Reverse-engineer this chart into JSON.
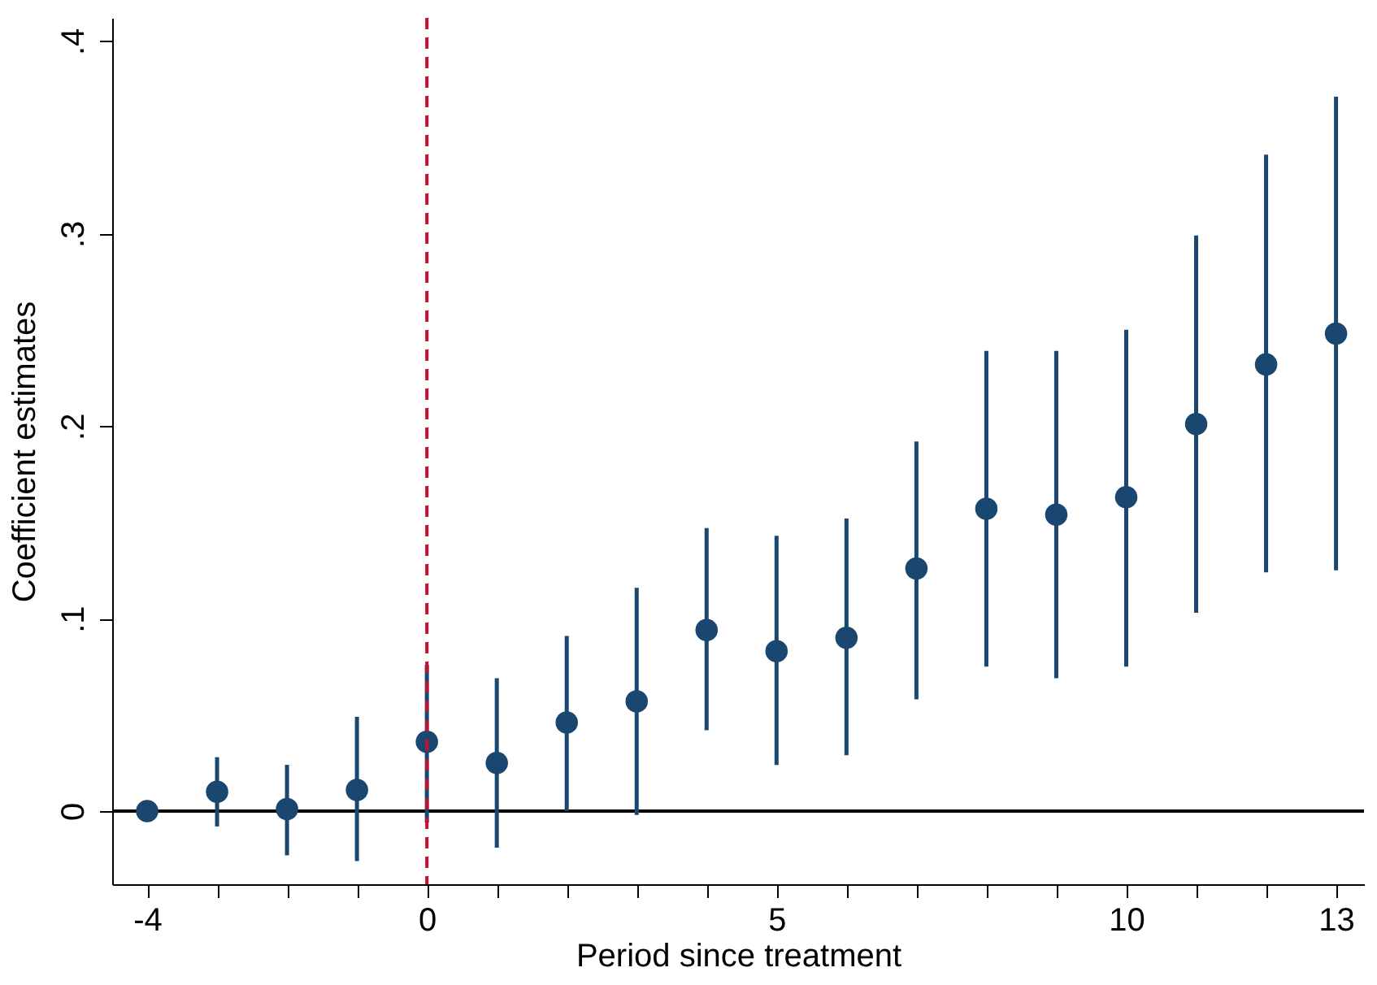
{
  "chart_data": {
    "type": "scatter",
    "xlabel": "Period since treatment",
    "ylabel": "Coefficient estimates",
    "x": [
      -4,
      -3,
      -2,
      -1,
      0,
      1,
      2,
      3,
      4,
      5,
      6,
      7,
      8,
      9,
      10,
      11,
      12,
      13
    ],
    "series": [
      {
        "color": "#1a476f",
        "values": [
          0,
          0.01,
          0.001,
          0.011,
          0.036,
          0.025,
          0.046,
          0.057,
          0.094,
          0.083,
          0.09,
          0.126,
          0.157,
          0.154,
          0.163,
          0.201,
          0.232,
          0.248
        ],
        "errors": [
          null,
          [
            -0.008,
            0.028
          ],
          [
            -0.023,
            0.024
          ],
          [
            -0.026,
            0.049
          ],
          [
            -0.006,
            0.076
          ],
          [
            -0.019,
            0.069
          ],
          [
            0.0,
            0.091
          ],
          [
            -0.002,
            0.116
          ],
          [
            0.042,
            0.147
          ],
          [
            0.024,
            0.143
          ],
          [
            0.029,
            0.152
          ],
          [
            0.058,
            0.192
          ],
          [
            0.075,
            0.239
          ],
          [
            0.069,
            0.239
          ],
          [
            0.075,
            0.25
          ],
          [
            0.103,
            0.299
          ],
          [
            0.124,
            0.341
          ],
          [
            0.125,
            0.371
          ]
        ]
      }
    ],
    "marker": "circle",
    "xlim": [
      -4.5,
      13.4
    ],
    "xticks": [
      -4,
      {
        "value": -3,
        "label": null
      },
      {
        "value": -2,
        "label": null
      },
      {
        "value": -1,
        "label": null
      },
      0,
      {
        "value": 1,
        "label": null
      },
      {
        "value": 2,
        "label": null
      },
      {
        "value": 3,
        "label": null
      },
      {
        "value": 4,
        "label": null
      },
      5,
      {
        "value": 6,
        "label": null
      },
      {
        "value": 7,
        "label": null
      },
      {
        "value": 8,
        "label": null
      },
      {
        "value": 9,
        "label": null
      },
      10,
      {
        "value": 11,
        "label": null
      },
      {
        "value": 12,
        "label": null
      },
      13
    ],
    "ylim": [
      -0.038,
      0.412
    ],
    "yticks": [
      0,
      {
        "value": 0.1,
        "label": ".1"
      },
      {
        "value": 0.2,
        "label": ".2"
      },
      {
        "value": 0.3,
        "label": ".3"
      },
      {
        "value": 0.4,
        "label": ".4"
      }
    ],
    "ref_lines": [
      {
        "axis": "y",
        "value": 0,
        "color": "#000000",
        "line_style": "solid"
      },
      {
        "axis": "x",
        "value": 0,
        "color": "#c8102e",
        "line_style": "dashed"
      }
    ],
    "grid": false
  }
}
